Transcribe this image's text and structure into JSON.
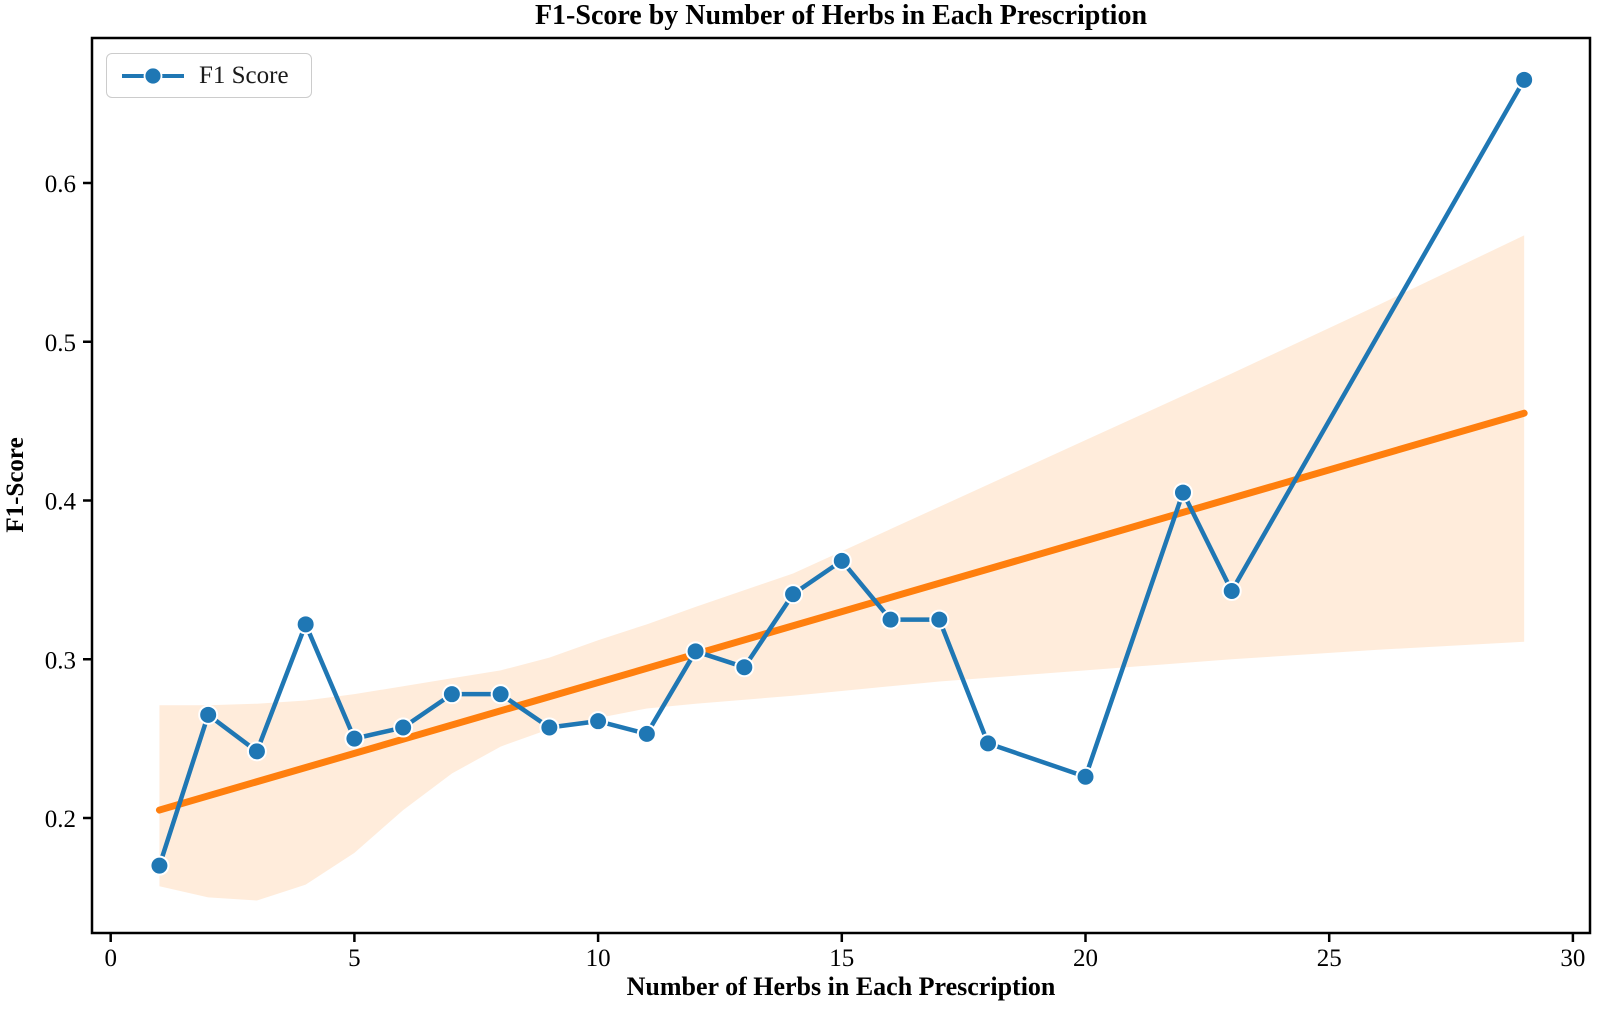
{
  "chart": {
    "title": "F1-Score by Number of Herbs in Each Prescription",
    "xlabel": "Number of Herbs in Each Prescription",
    "ylabel": "F1-Score",
    "legend_label": "F1 Score"
  },
  "colors": {
    "line": "#1f77b4",
    "marker_fill": "#1f77b4",
    "marker_edge": "#ffffff",
    "trend": "#ff7f0e",
    "band": "rgba(255,127,14,0.15)",
    "axis": "#000000",
    "tick_text": "#000000",
    "legend_border": "#cccccc",
    "background": "#ffffff"
  },
  "chart_data": {
    "type": "line",
    "title": "F1-Score by Number of Herbs in Each Prescription",
    "xlabel": "Number of Herbs in Each Prescription",
    "ylabel": "F1-Score",
    "grid": false,
    "legend_position": "upper left",
    "xlim": [
      -0.4,
      30.4
    ],
    "ylim": [
      0.128,
      0.691
    ],
    "x_ticks": [
      0,
      5,
      10,
      15,
      20,
      25,
      30
    ],
    "x_tick_labels": [
      "0",
      "5",
      "10",
      "15",
      "20",
      "25",
      "30"
    ],
    "y_ticks": [
      0.2,
      0.3,
      0.4,
      0.5,
      0.6
    ],
    "y_tick_labels": [
      "0.2",
      "0.3",
      "0.4",
      "0.5",
      "0.6"
    ],
    "series": [
      {
        "name": "F1 Score",
        "kind": "line+markers",
        "x": [
          1,
          2,
          3,
          4,
          5,
          6,
          7,
          8,
          9,
          10,
          11,
          12,
          13,
          14,
          15,
          16,
          17,
          18,
          20,
          22,
          23,
          29
        ],
        "y": [
          0.17,
          0.265,
          0.242,
          0.322,
          0.25,
          0.257,
          0.278,
          0.278,
          0.257,
          0.261,
          0.253,
          0.305,
          0.295,
          0.341,
          0.362,
          0.325,
          0.325,
          0.247,
          0.226,
          0.405,
          0.343,
          0.665
        ]
      },
      {
        "name": "trend",
        "kind": "regression-line",
        "x": [
          1,
          29
        ],
        "y": [
          0.205,
          0.455
        ]
      },
      {
        "name": "confidence_band",
        "kind": "band",
        "x": [
          1,
          2,
          3,
          4,
          5,
          6,
          7,
          8,
          9,
          10,
          11,
          12,
          14,
          17,
          20,
          23,
          26,
          29
        ],
        "top": [
          0.271,
          0.271,
          0.272,
          0.274,
          0.278,
          0.283,
          0.288,
          0.293,
          0.301,
          0.312,
          0.322,
          0.333,
          0.354,
          0.396,
          0.438,
          0.48,
          0.523,
          0.567
        ],
        "bottom": [
          0.157,
          0.15,
          0.148,
          0.158,
          0.178,
          0.205,
          0.228,
          0.245,
          0.256,
          0.263,
          0.269,
          0.272,
          0.277,
          0.286,
          0.293,
          0.3,
          0.306,
          0.311
        ]
      }
    ]
  }
}
